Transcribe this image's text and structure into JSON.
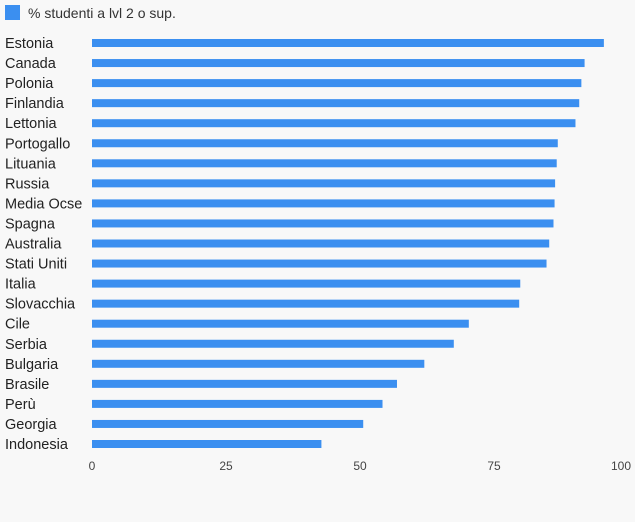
{
  "colors": {
    "bar": "#3b8ff0",
    "background": "#f8f8f8"
  },
  "chart_data": {
    "type": "bar",
    "orientation": "horizontal",
    "legend": {
      "position": "top-left",
      "label": "% studenti a lvl 2 o sup."
    },
    "series": [
      {
        "name": "% studenti a lvl 2 o sup.",
        "values": [
          95.5,
          91.9,
          91.3,
          90.9,
          90.2,
          86.9,
          86.7,
          86.4,
          86.3,
          86.1,
          85.3,
          84.8,
          79.9,
          79.7,
          70.3,
          67.5,
          62.0,
          56.9,
          54.2,
          50.6,
          42.8
        ]
      }
    ],
    "categories": [
      "Estonia",
      "Canada",
      "Polonia",
      "Finlandia",
      "Lettonia",
      "Portogallo",
      "Lituania",
      "Russia",
      "Media Ocse",
      "Spagna",
      "Australia",
      "Stati Uniti",
      "Italia",
      "Slovacchia",
      "Cile",
      "Serbia",
      "Bulgaria",
      "Brasile",
      "Perù",
      "Georgia",
      "Indonesia"
    ],
    "xlim": [
      0,
      100
    ],
    "xticks": [
      0,
      25,
      50,
      75,
      100
    ],
    "grid": false
  }
}
